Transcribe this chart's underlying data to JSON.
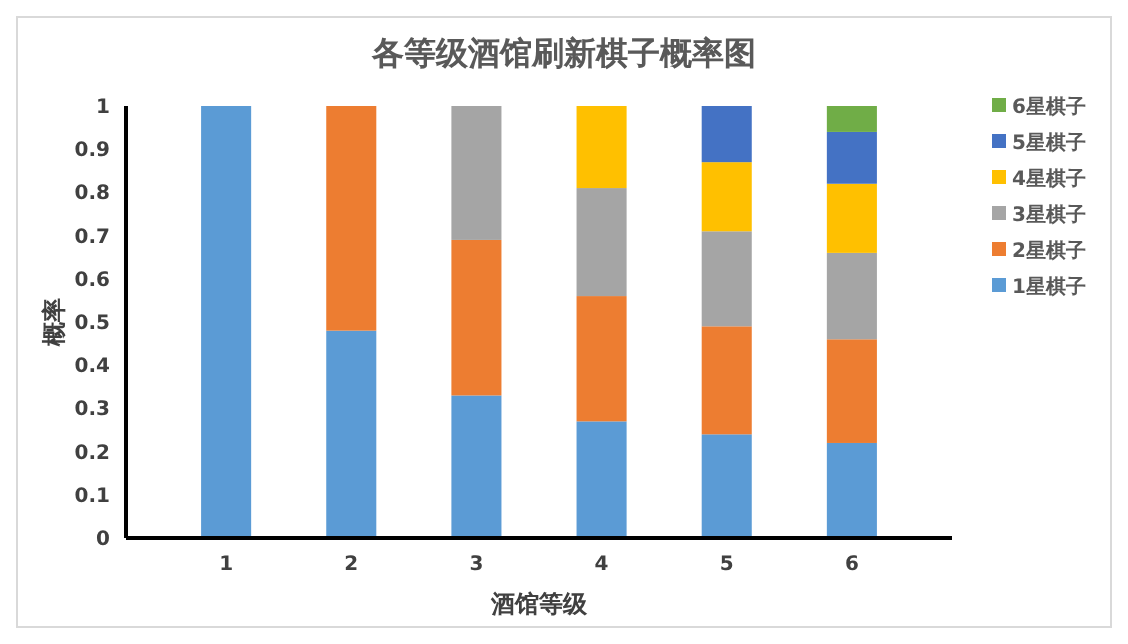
{
  "chart_data": {
    "type": "bar",
    "title": "各等级酒馆刷新棋子概率图",
    "xlabel": "酒馆等级",
    "ylabel": "概率",
    "categories": [
      "1",
      "2",
      "3",
      "4",
      "5",
      "6"
    ],
    "stacked": true,
    "ylim": [
      0,
      1
    ],
    "yticks": [
      0,
      0.1,
      0.2,
      0.3,
      0.4,
      0.5,
      0.6,
      0.7,
      0.8,
      0.9,
      1
    ],
    "grid": false,
    "legend": "right",
    "series": [
      {
        "name": "1星棋子",
        "color": "#5b9bd5",
        "values": [
          1,
          0.48,
          0.33,
          0.27,
          0.24,
          0.22
        ]
      },
      {
        "name": "2星棋子",
        "color": "#ed7d31",
        "values": [
          null,
          0.52,
          0.36,
          0.29,
          0.25,
          0.24
        ]
      },
      {
        "name": "3星棋子",
        "color": "#a5a5a5",
        "values": [
          null,
          null,
          0.31,
          0.25,
          0.22,
          0.2
        ]
      },
      {
        "name": "4星棋子",
        "color": "#ffc000",
        "values": [
          null,
          null,
          null,
          0.19,
          0.16,
          0.16
        ]
      },
      {
        "name": "5星棋子",
        "color": "#4472c4",
        "values": [
          null,
          null,
          null,
          null,
          0.13,
          0.12
        ]
      },
      {
        "name": "6星棋子",
        "color": "#70ad47",
        "values": [
          null,
          null,
          null,
          null,
          null,
          0.06
        ]
      }
    ]
  }
}
